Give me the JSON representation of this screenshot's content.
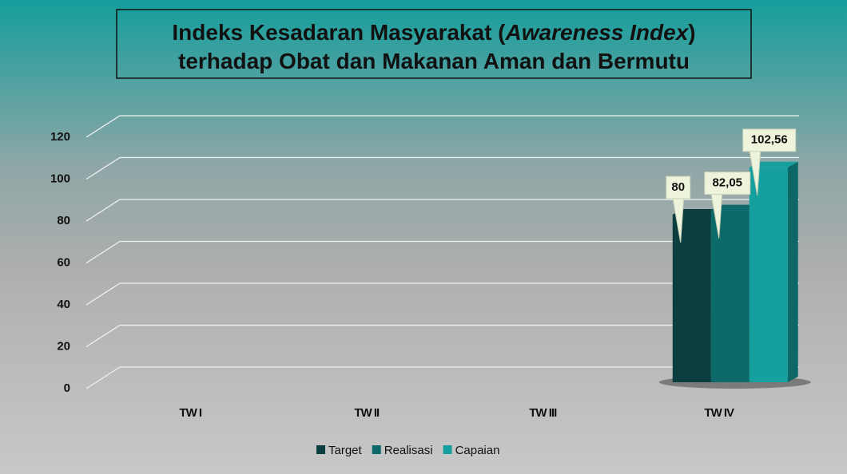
{
  "chart_data": {
    "type": "bar3d",
    "title": [
      "Indeks Kesadaran Masyarakat (",
      "Awareness Index",
      ")",
      "terhadap Obat dan Makanan Aman dan Bermutu"
    ],
    "categories": [
      "TW I",
      "TW II",
      "TW III",
      "TW IV"
    ],
    "series": [
      {
        "name": "Target",
        "color": "#0c3e3f",
        "values": [
          null,
          null,
          null,
          80
        ],
        "value_labels": [
          null,
          null,
          null,
          "80"
        ]
      },
      {
        "name": "Realisasi",
        "color": "#0c6a6b",
        "values": [
          null,
          null,
          null,
          82.05
        ],
        "value_labels": [
          null,
          null,
          null,
          "82,05"
        ]
      },
      {
        "name": "Capaian",
        "color": "#169f9f",
        "values": [
          null,
          null,
          null,
          102.56
        ],
        "value_labels": [
          null,
          null,
          null,
          "102,56"
        ]
      }
    ],
    "ylim": [
      0,
      120
    ],
    "yticks": [
      0,
      20,
      40,
      60,
      80,
      100,
      120
    ],
    "grid": true,
    "legend": "bottom"
  }
}
